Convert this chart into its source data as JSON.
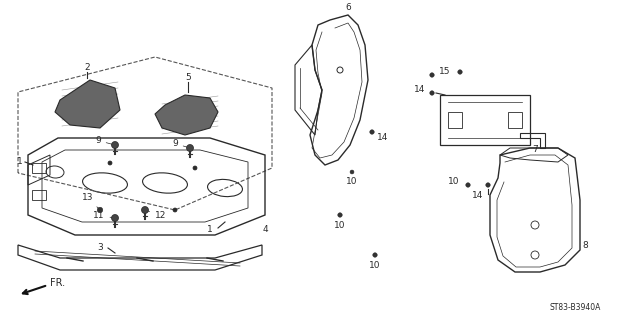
{
  "diagram_code": "ST83-B3940A",
  "background_color": "#ffffff",
  "line_color": "#2a2a2a",
  "figsize": [
    6.4,
    3.19
  ],
  "dpi": 100
}
